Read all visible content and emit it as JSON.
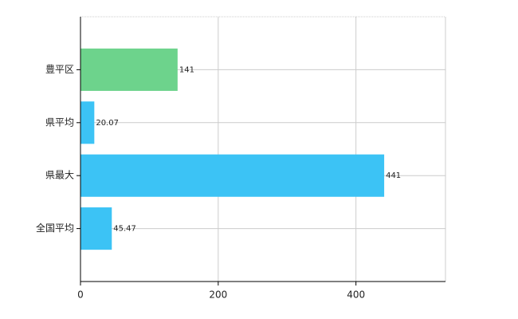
{
  "chart_data": {
    "type": "bar",
    "orientation": "horizontal",
    "categories": [
      "豊平区",
      "県平均",
      "県最大",
      "全国平均"
    ],
    "values": [
      141,
      20.07,
      441,
      45.47
    ],
    "colors": [
      "#6dd38c",
      "#3cc3f5",
      "#3cc3f5",
      "#3cc3f5"
    ],
    "xlim": [
      0,
      530
    ],
    "xticks": [
      0,
      200,
      400
    ],
    "grid": true
  }
}
